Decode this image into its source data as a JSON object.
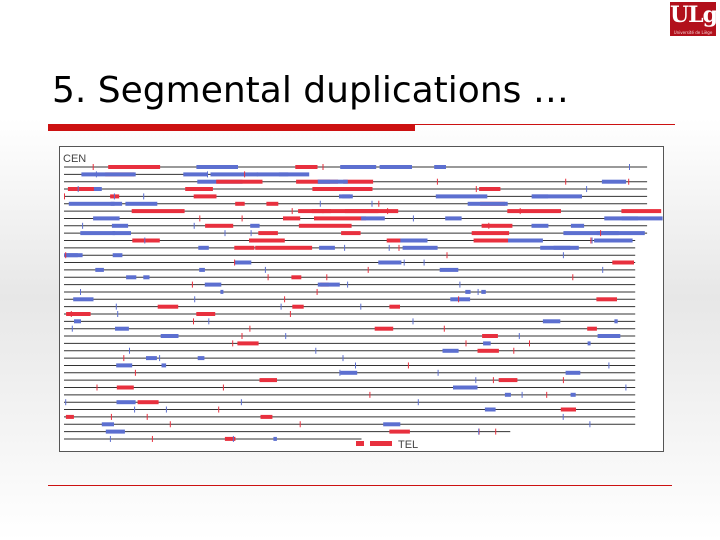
{
  "slide": {
    "title": "5. Segmental duplications …",
    "logo_text": "ULg",
    "logo_subtext": "Université de Liège"
  },
  "figure": {
    "label_cen": "CEN",
    "label_tel": "TEL",
    "colors": {
      "interchromosomal": "#e8303e",
      "intrachromosomal": "#5c6fd0",
      "chromosome_line": "#333333",
      "gap": "#aaaaaa"
    },
    "num_chromosome_lines": 38
  }
}
